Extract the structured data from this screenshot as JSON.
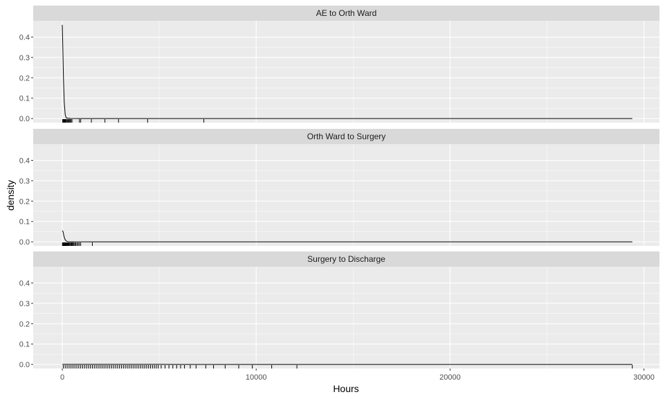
{
  "chart_data": {
    "type": "line",
    "chart_kind": "faceted density plot with rug marks",
    "xlabel": "Hours",
    "ylabel": "density",
    "xlim": [
      -1500,
      30800
    ],
    "ylim": [
      -0.02,
      0.48
    ],
    "x_ticks": [
      0,
      10000,
      20000,
      30000
    ],
    "x_tick_labels": [
      "0",
      "10000",
      "20000",
      "30000"
    ],
    "y_ticks": [
      0.0,
      0.1,
      0.2,
      0.3,
      0.4
    ],
    "y_tick_labels": [
      "0.0",
      "0.1",
      "0.2",
      "0.3",
      "0.4"
    ],
    "grid": true,
    "legend": "none",
    "colors": {
      "panel_bg": "#EBEBEB",
      "strip_bg": "#D9D9D9",
      "grid": "#FFFFFF",
      "line": "#000000"
    },
    "panels": [
      {
        "name": "AE to Orth Ward",
        "density": [
          [
            0,
            0.46
          ],
          [
            20,
            0.38
          ],
          [
            60,
            0.2
          ],
          [
            100,
            0.08
          ],
          [
            150,
            0.02
          ],
          [
            200,
            0.003
          ],
          [
            400,
            0.0005
          ],
          [
            1000,
            0.0
          ],
          [
            29400,
            0.0
          ]
        ],
        "rug": [
          20,
          40,
          60,
          80,
          100,
          130,
          160,
          200,
          240,
          280,
          320,
          360,
          400,
          450,
          500,
          880,
          950,
          1500,
          2200,
          2900,
          4400,
          7300
        ]
      },
      {
        "name": "Orth Ward to Surgery",
        "density": [
          [
            0,
            0.055
          ],
          [
            40,
            0.05
          ],
          [
            80,
            0.03
          ],
          [
            140,
            0.012
          ],
          [
            200,
            0.004
          ],
          [
            300,
            0.001
          ],
          [
            600,
            0.0002
          ],
          [
            1500,
            0.0
          ],
          [
            29400,
            0.0
          ]
        ],
        "rug": [
          10,
          30,
          50,
          70,
          90,
          110,
          130,
          150,
          170,
          190,
          210,
          240,
          270,
          300,
          330,
          360,
          400,
          440,
          480,
          520,
          560,
          600,
          650,
          700,
          760,
          820,
          880,
          950,
          1550
        ]
      },
      {
        "name": "Surgery to Discharge",
        "density": [
          [
            0,
            0.0006
          ],
          [
            2000,
            0.0004
          ],
          [
            5000,
            0.0002
          ],
          [
            10000,
            5e-05
          ],
          [
            15000,
            0.0
          ],
          [
            29400,
            0.0
          ]
        ],
        "rug": [
          50,
          150,
          250,
          350,
          450,
          550,
          650,
          750,
          850,
          950,
          1050,
          1150,
          1250,
          1350,
          1450,
          1550,
          1650,
          1750,
          1850,
          1950,
          2050,
          2150,
          2250,
          2350,
          2450,
          2550,
          2650,
          2750,
          2850,
          2950,
          3050,
          3150,
          3250,
          3350,
          3450,
          3550,
          3650,
          3750,
          3850,
          3950,
          4050,
          4150,
          4250,
          4350,
          4450,
          4550,
          4650,
          4750,
          4850,
          4950,
          5100,
          5300,
          5500,
          5700,
          5900,
          6100,
          6300,
          6600,
          6900,
          7400,
          7800,
          8400,
          9100,
          9800,
          10800,
          12100,
          29400
        ]
      }
    ]
  }
}
